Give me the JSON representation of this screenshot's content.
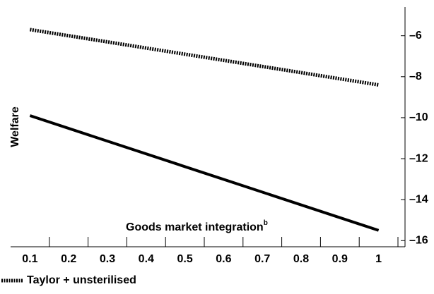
{
  "chart_data": {
    "type": "line",
    "y_label": "Welfare",
    "x_label": "Goods market integration",
    "x_label_superscript": "b",
    "x": [
      0.1,
      1
    ],
    "series": [
      {
        "name": "Taylor + unsterilised",
        "color": "#000000",
        "style": "dotted",
        "values": [
          -5.7,
          -8.4
        ]
      },
      {
        "color": "#000000",
        "style": "solid",
        "values": [
          -9.9,
          -15.5
        ]
      }
    ],
    "xlim": [
      0.05,
      1.05
    ],
    "xticks": [
      0.1,
      0.2,
      0.3,
      0.4,
      0.5,
      0.6,
      0.7,
      0.8,
      0.9,
      1
    ],
    "ylim": [
      -16.3,
      -4.6
    ],
    "yticks": [
      {
        "value": -6,
        "label": "–6"
      },
      {
        "value": -8,
        "label": "–8"
      },
      {
        "value": -10,
        "label": "–10"
      },
      {
        "value": -12,
        "label": "–12"
      },
      {
        "value": -14,
        "label": "–14"
      },
      {
        "value": -16,
        "label": "–16"
      }
    ],
    "y_axis_side": "right",
    "grid": false
  }
}
